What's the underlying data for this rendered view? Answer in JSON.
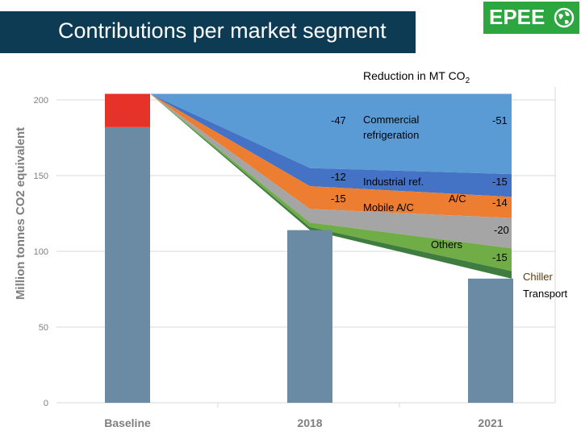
{
  "header": {
    "title": "Contributions per market segment",
    "logo_text": "EPEE",
    "subtitle_main": "Reduction in MT CO",
    "subtitle_sub": "2"
  },
  "colors": {
    "title_bg": "#0d3b54",
    "logo_bg": "#2ca63f",
    "bar": "#6b8aa3",
    "baseline_top": "#e63329",
    "commercial": "#5b9bd5",
    "industrial": "#4472c4",
    "mobile_ac": "#ed7d31",
    "others": "#a5a5a5",
    "transport": "#70ad47",
    "chiller": "#3e7d3f"
  },
  "chart_data": {
    "type": "bar",
    "title": "Reduction in MT CO2",
    "ylabel": "Million tonnes CO2 equivalent",
    "xlabel": "",
    "ylim": [
      0,
      200
    ],
    "yticks": [
      "0",
      "50",
      "100",
      "150",
      "200"
    ],
    "categories": [
      "Baseline",
      "2018",
      "2021"
    ],
    "bars": [
      {
        "category": "Baseline",
        "value": 182,
        "top_segment": 22
      },
      {
        "category": "2018",
        "value": 114
      },
      {
        "category": "2021",
        "value": 82
      }
    ],
    "area_bands_2018": [
      {
        "name": "Commercial refrigeration",
        "value": 47
      },
      {
        "name": "Industrial ref.",
        "value": 12
      },
      {
        "name": "Mobile A/C",
        "value": 15
      },
      {
        "name": "Others",
        "value": 9
      },
      {
        "name": "Transport",
        "value": 3
      },
      {
        "name": "Chiller",
        "value": 2
      }
    ],
    "area_bands_2021": [
      {
        "name": "Commercial refrigeration",
        "value": 51
      },
      {
        "name": "Industrial ref.",
        "value": 15
      },
      {
        "name": "Mobile A/C",
        "value": 14
      },
      {
        "name": "Others",
        "value": 20
      },
      {
        "name": "Transport",
        "value": 15
      },
      {
        "name": "Chiller",
        "value": 5
      }
    ],
    "annotations": {
      "reductions_2018": [
        "-47",
        "-12",
        "-15"
      ],
      "reductions_2021": [
        "-51",
        "-15",
        "-14",
        "-20",
        "-15"
      ],
      "segment_labels": {
        "commercial": "Commercial refrigeration",
        "industrial": "Industrial ref.",
        "mobile": "Mobile A/C",
        "ac": "A/C",
        "others": "Others",
        "chiller": "Chiller",
        "transport": "Transport"
      }
    }
  }
}
